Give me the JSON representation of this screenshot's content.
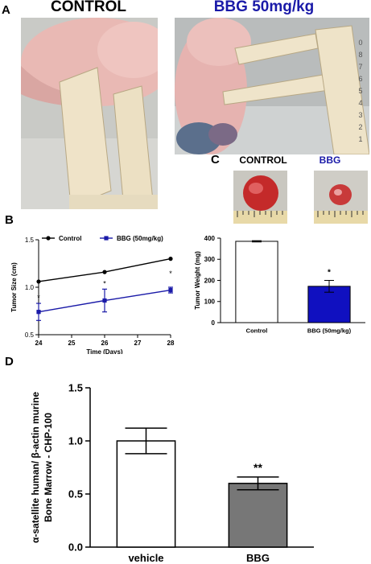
{
  "panels": {
    "A": {
      "letter": "A",
      "left_title": "CONTROL",
      "right_title": "BBG 50mg/kg",
      "title_colors": {
        "left": "#000000",
        "right": "#1a1aa8"
      },
      "ruler_digits": [
        "0",
        "8",
        "7",
        "6",
        "5",
        "4",
        "3",
        "2",
        "1"
      ]
    },
    "B": {
      "letter": "B"
    },
    "C": {
      "letter": "C",
      "left_title": "CONTROL",
      "right_title": "BBG",
      "title_colors": {
        "left": "#000000",
        "right": "#1a1aa8"
      }
    },
    "D": {
      "letter": "D"
    }
  },
  "chart_data": [
    {
      "id": "B",
      "type": "line",
      "xlabel": "Time (Days)",
      "ylabel": "Tumor Size (cm)",
      "x": [
        24,
        26,
        28
      ],
      "xticks": [
        24,
        25,
        26,
        27,
        28
      ],
      "xlim": [
        24,
        28
      ],
      "yticks": [
        "0.5",
        "1.0",
        "1.5"
      ],
      "ylim": [
        0.5,
        1.5
      ],
      "series": [
        {
          "name": "Control",
          "color": "#000000",
          "marker": "circle",
          "values": [
            1.06,
            1.16,
            1.3
          ],
          "errors": [
            0,
            0,
            0
          ]
        },
        {
          "name": "BBG (50mg/kg)",
          "color": "#1a1aa8",
          "marker": "square",
          "values": [
            0.74,
            0.86,
            0.97
          ],
          "errors": [
            0.09,
            0.12,
            0.03
          ]
        }
      ],
      "annotations": [
        "*",
        "*",
        "*"
      ],
      "legend": "top"
    },
    {
      "id": "C",
      "type": "bar",
      "ylabel": "Tumor Weight (mg)",
      "categories": [
        "Control",
        "BBG (50mg/kg)"
      ],
      "values": [
        385,
        172
      ],
      "errors": [
        3,
        28
      ],
      "colors": [
        "#ffffff",
        "#1010c0"
      ],
      "yticks": [
        "0",
        "100",
        "200",
        "300",
        "400"
      ],
      "ylim": [
        0,
        400
      ],
      "annotations": [
        "",
        "*"
      ]
    },
    {
      "id": "D",
      "type": "bar",
      "ylabel_lines": [
        "α-satellite human/ β-actin murine",
        "Bone Marrow - CHP-100"
      ],
      "categories": [
        "vehicle",
        "BBG"
      ],
      "values": [
        1.0,
        0.6
      ],
      "errors": [
        0.12,
        0.06
      ],
      "colors": [
        "#ffffff",
        "#777777"
      ],
      "yticks": [
        "0.0",
        "0.5",
        "1.0",
        "1.5"
      ],
      "ylim": [
        0,
        1.5
      ],
      "annotations": [
        "",
        "**"
      ]
    }
  ]
}
